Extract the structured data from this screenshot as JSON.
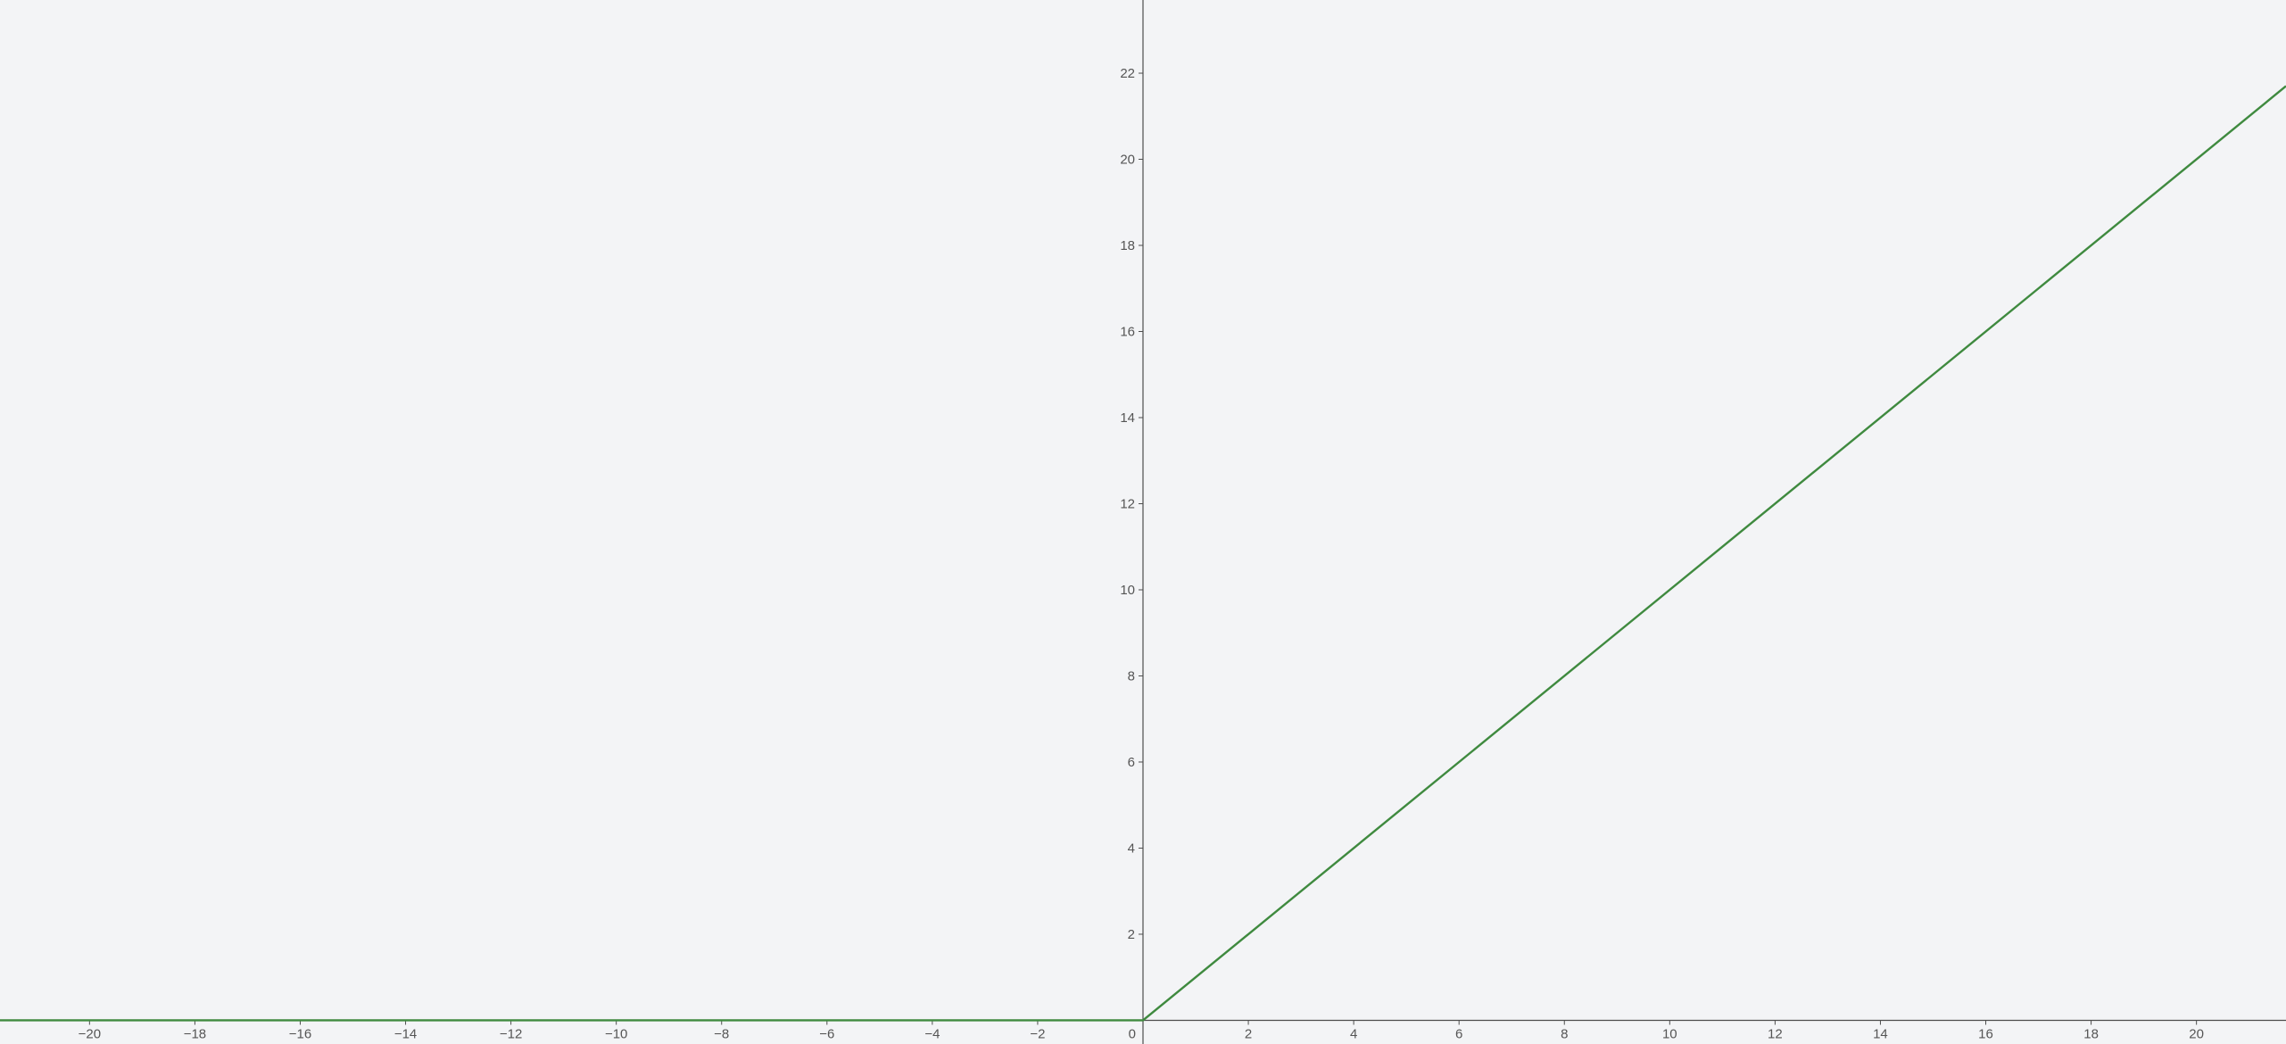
{
  "colors": {
    "background": "#f3f4f6",
    "axis": "#4d4d4d",
    "curve": "#3f8a3f",
    "tick_label": "#555555"
  },
  "chart_data": {
    "type": "line",
    "title": "",
    "xlabel": "",
    "ylabel": "",
    "xlim": [
      -21.7,
      21.7
    ],
    "ylim": [
      -0.55,
      23.7
    ],
    "grid": false,
    "x_ticks": [
      -20,
      -18,
      -16,
      -14,
      -12,
      -10,
      -8,
      -6,
      -4,
      -2,
      0,
      2,
      4,
      6,
      8,
      10,
      12,
      14,
      16,
      18,
      20
    ],
    "y_ticks": [
      2,
      4,
      6,
      8,
      10,
      12,
      14,
      16,
      18,
      20,
      22
    ],
    "series": [
      {
        "name": "",
        "x": [
          -21.7,
          0,
          21.7
        ],
        "y": [
          0,
          0,
          21.7
        ]
      }
    ]
  }
}
